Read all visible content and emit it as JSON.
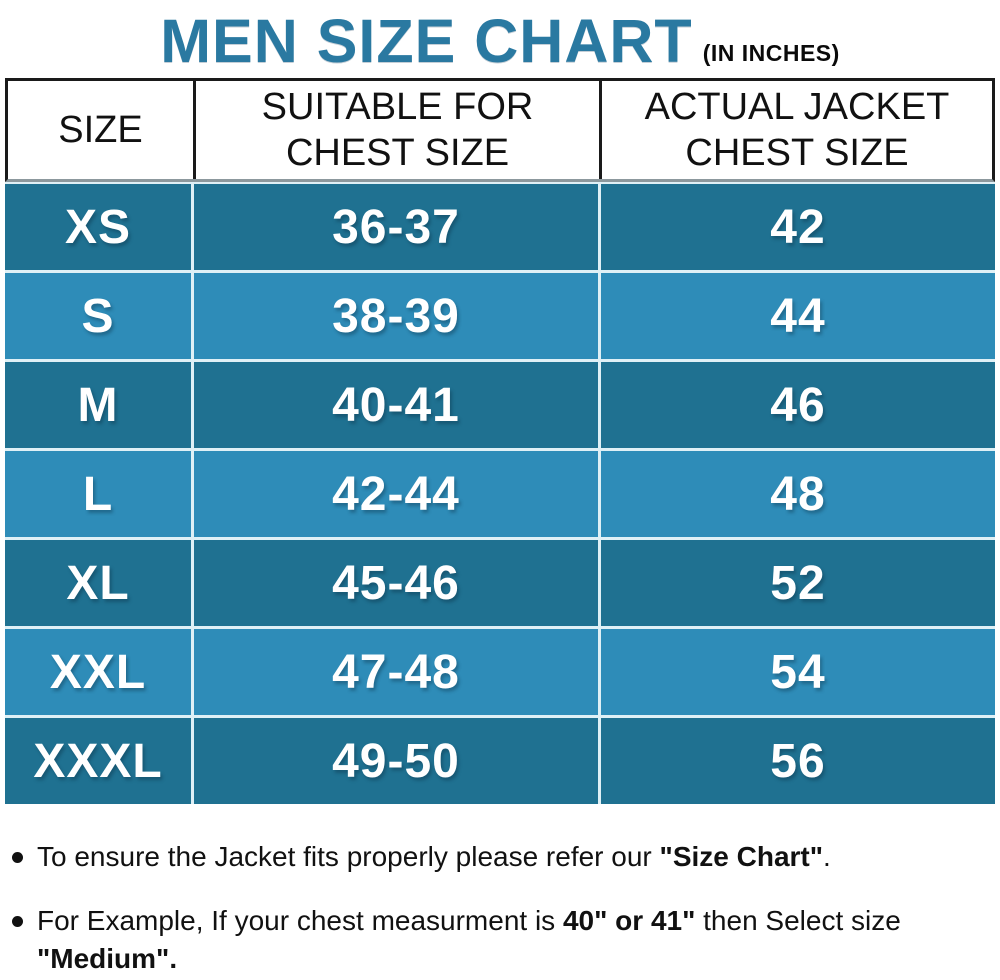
{
  "title": {
    "main": "MEN SIZE CHART",
    "suffix": "(IN INCHES)"
  },
  "table": {
    "headers": {
      "size": "SIZE",
      "suitable": "SUITABLE FOR\nCHEST SIZE",
      "actual": "ACTUAL JACKET\nCHEST SIZE"
    },
    "rows": [
      {
        "size": "XS",
        "suitable": "36-37",
        "actual": "42"
      },
      {
        "size": "S",
        "suitable": "38-39",
        "actual": "44"
      },
      {
        "size": "M",
        "suitable": "40-41",
        "actual": "46"
      },
      {
        "size": "L",
        "suitable": "42-44",
        "actual": "48"
      },
      {
        "size": "XL",
        "suitable": "45-46",
        "actual": "52"
      },
      {
        "size": "XXL",
        "suitable": "47-48",
        "actual": "54"
      },
      {
        "size": "XXXL",
        "suitable": "49-50",
        "actual": "56"
      }
    ]
  },
  "chart_data": {
    "type": "table",
    "title": "MEN SIZE CHART (IN INCHES)",
    "units": "inches",
    "columns": [
      "SIZE",
      "SUITABLE FOR CHEST SIZE",
      "ACTUAL JACKET CHEST SIZE"
    ],
    "rows": [
      [
        "XS",
        "36-37",
        "42"
      ],
      [
        "S",
        "38-39",
        "44"
      ],
      [
        "M",
        "40-41",
        "46"
      ],
      [
        "L",
        "42-44",
        "48"
      ],
      [
        "XL",
        "45-46",
        "52"
      ],
      [
        "XXL",
        "47-48",
        "54"
      ],
      [
        "XXXL",
        "49-50",
        "56"
      ]
    ]
  },
  "notes": {
    "n1": {
      "pre": "To ensure the Jacket fits properly please refer our ",
      "bold": "\"Size Chart\"",
      "post": "."
    },
    "n2": {
      "pre": "For Example, If your chest measurment is ",
      "bold1": "40\" or 41\"",
      "mid": " then Select size",
      "line2_bold": "\"Medium\"."
    }
  },
  "colors": {
    "title_teal": "#2A79A1",
    "row_dark": "#1F7191",
    "row_light": "#2E8CB8",
    "separator": "#DFF0F6",
    "header_border": "#1A1A1A",
    "body_text": "#FFFFFF",
    "note_text": "#111111"
  }
}
